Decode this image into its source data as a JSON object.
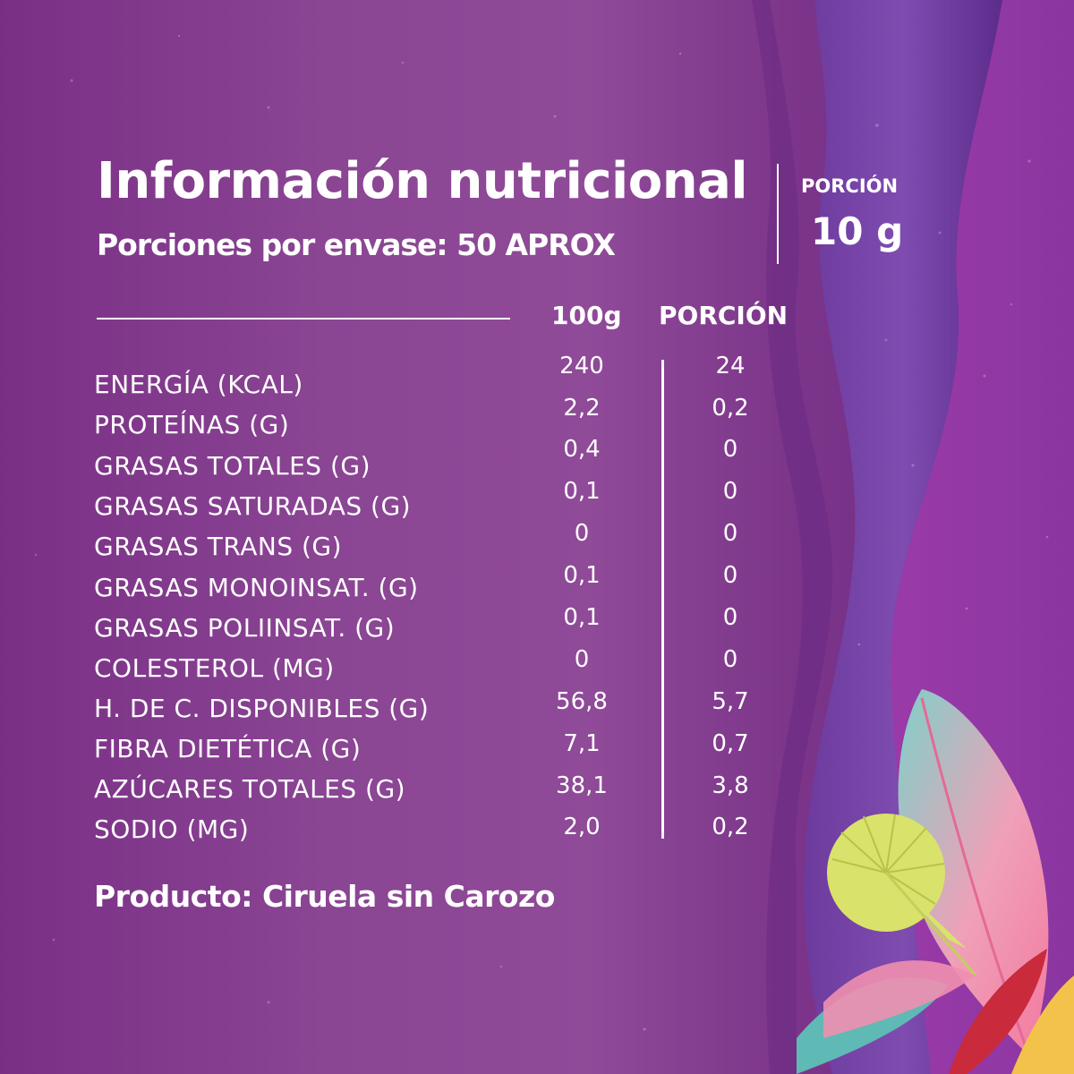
{
  "title": "Información nutricional",
  "servings": "Porciones por envase:  50 APROX",
  "portion": {
    "label": "PORCIÓN",
    "value": "10 g"
  },
  "columns": {
    "per100": "100g",
    "perPortion": "PORCIÓN"
  },
  "rows": [
    {
      "name": "ENERGÍA (KCAL)",
      "per100": "240",
      "perPortion": "24"
    },
    {
      "name": "PROTEÍNAS (G)",
      "per100": "2,2",
      "perPortion": "0,2"
    },
    {
      "name": "GRASAS TOTALES (G)",
      "per100": "0,4",
      "perPortion": "0"
    },
    {
      "name": "GRASAS SATURADAS (G)",
      "per100": "0,1",
      "perPortion": "0"
    },
    {
      "name": "GRASAS TRANS (G)",
      "per100": "0",
      "perPortion": "0"
    },
    {
      "name": "GRASAS MONOINSAT. (G)",
      "per100": "0,1",
      "perPortion": "0"
    },
    {
      "name": "GRASAS POLIINSAT. (G)",
      "per100": "0,1",
      "perPortion": "0"
    },
    {
      "name": "COLESTEROL (MG)",
      "per100": "0",
      "perPortion": "0"
    },
    {
      "name": "H. DE C. DISPONIBLES (G)",
      "per100": "56,8",
      "perPortion": "5,7"
    },
    {
      "name": "FIBRA DIETÉTICA (G)",
      "per100": "7,1",
      "perPortion": "0,7"
    },
    {
      "name": "AZÚCARES TOTALES (G)",
      "per100": "38,1",
      "perPortion": "3,8"
    },
    {
      "name": "SODIO (MG)",
      "per100": "2,0",
      "perPortion": "0,2"
    }
  ],
  "product": "Producto: Ciruela sin Carozo",
  "colors": {
    "text": "#ffffff",
    "background": "#8a4593",
    "wave": "#6a4aa8",
    "leafYellow": "#d9e26a",
    "leafPink": "#f08fb0",
    "leafTeal": "#7fd0c8"
  }
}
